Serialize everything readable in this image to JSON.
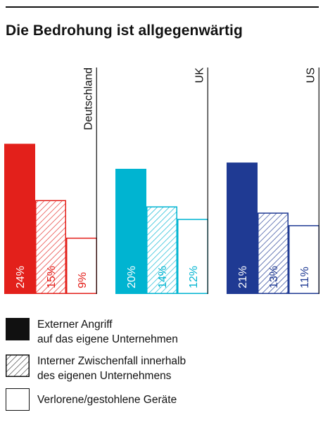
{
  "title": "Die Bedrohung ist allgegenwärtig",
  "chart_data": {
    "type": "bar",
    "title": "Die Bedrohung ist allgegenwärtig",
    "ylim": [
      0,
      24
    ],
    "categories": [
      "Deutschland",
      "UK",
      "US"
    ],
    "series": [
      {
        "name": "Externer Angriff auf das eigene Unternehmen",
        "values": [
          24,
          20,
          21
        ],
        "pattern": "solid"
      },
      {
        "name": "Interner Zwischenfall innerhalb des eigenen Unternehmens",
        "values": [
          15,
          14,
          13
        ],
        "pattern": "hatched"
      },
      {
        "name": "Verlorene/gestohlene Geräte",
        "values": [
          9,
          12,
          11
        ],
        "pattern": "outline"
      }
    ],
    "group_colors": [
      "#e3201b",
      "#00b4d1",
      "#1f3a93"
    ],
    "value_labels": [
      [
        "24%",
        "15%",
        "9%"
      ],
      [
        "20%",
        "14%",
        "12%"
      ],
      [
        "21%",
        "13%",
        "11%"
      ]
    ]
  },
  "legend": [
    {
      "line1": "Externer Angriff",
      "line2": "auf das eigene Unternehmen",
      "style": "solid",
      "color": "#111111"
    },
    {
      "line1": "Interner Zwischenfall innerhalb",
      "line2": "des eigenen Unternehmens",
      "style": "hatched",
      "color": "#111111"
    },
    {
      "line1": "Verlorene/gestohlene Geräte",
      "line2": "",
      "style": "outline",
      "color": "#111111"
    }
  ]
}
